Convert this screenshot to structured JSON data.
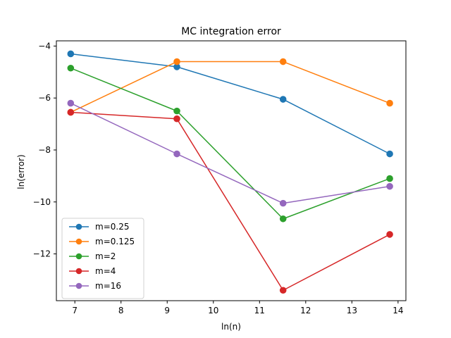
{
  "chart_data": {
    "type": "line",
    "title": "MC integration error",
    "xlabel": "ln(n)",
    "ylabel": "ln(error)",
    "xlim": [
      6.6,
      14.17
    ],
    "ylim": [
      -13.8,
      -3.8
    ],
    "xticks": [
      7,
      8,
      9,
      10,
      11,
      12,
      13,
      14
    ],
    "yticks": [
      -4,
      -6,
      -8,
      -10,
      -12
    ],
    "xtick_labels": [
      "7",
      "8",
      "9",
      "10",
      "11",
      "12",
      "13",
      "14"
    ],
    "ytick_labels": [
      "−4",
      "−6",
      "−8",
      "−10",
      "−12"
    ],
    "x": [
      6.91,
      9.21,
      11.51,
      13.82
    ],
    "grid": false,
    "legend_position": "lower-left",
    "series": [
      {
        "name": "m=0.25",
        "color": "#1f77b4",
        "values": [
          -4.3,
          -4.8,
          -6.05,
          -8.15
        ]
      },
      {
        "name": "m=0.125",
        "color": "#ff7f0e",
        "values": [
          -6.55,
          -4.6,
          -4.6,
          -6.2
        ]
      },
      {
        "name": "m=2",
        "color": "#2ca02c",
        "values": [
          -4.85,
          -6.5,
          -10.65,
          -9.1
        ]
      },
      {
        "name": "m=4",
        "color": "#d62728",
        "values": [
          -6.55,
          -6.8,
          -13.4,
          -11.25
        ]
      },
      {
        "name": "m=16",
        "color": "#9467bd",
        "values": [
          -6.2,
          -8.15,
          -10.05,
          -9.4
        ]
      }
    ]
  }
}
